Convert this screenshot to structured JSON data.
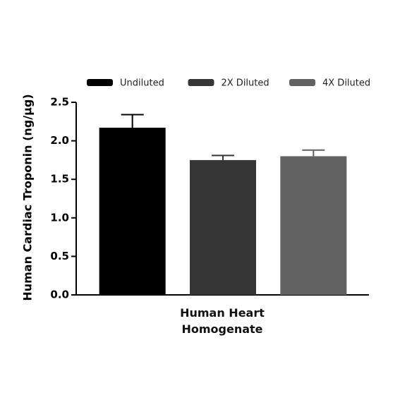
{
  "chart_data": {
    "type": "bar",
    "y_label": "Human Cardiac Troponin (ng/µg)",
    "categories": [
      "Human Heart Homogenate"
    ],
    "series": [
      {
        "name": "Undiluted",
        "color": "#000000",
        "values": [
          2.17
        ],
        "errors": [
          0.17
        ]
      },
      {
        "name": "2X Diluted",
        "color": "#363636",
        "values": [
          1.75
        ],
        "errors": [
          0.06
        ]
      },
      {
        "name": "4X Diluted",
        "color": "#626262",
        "values": [
          1.8
        ],
        "errors": [
          0.08
        ]
      }
    ],
    "ylim": [
      0,
      2.5
    ],
    "yticks": [
      {
        "value": 0,
        "label": "0.0"
      },
      0.5,
      {
        "value": 1,
        "label": "1.0"
      },
      1.5,
      {
        "value": 2,
        "label": "2.0"
      },
      2.5
    ]
  }
}
